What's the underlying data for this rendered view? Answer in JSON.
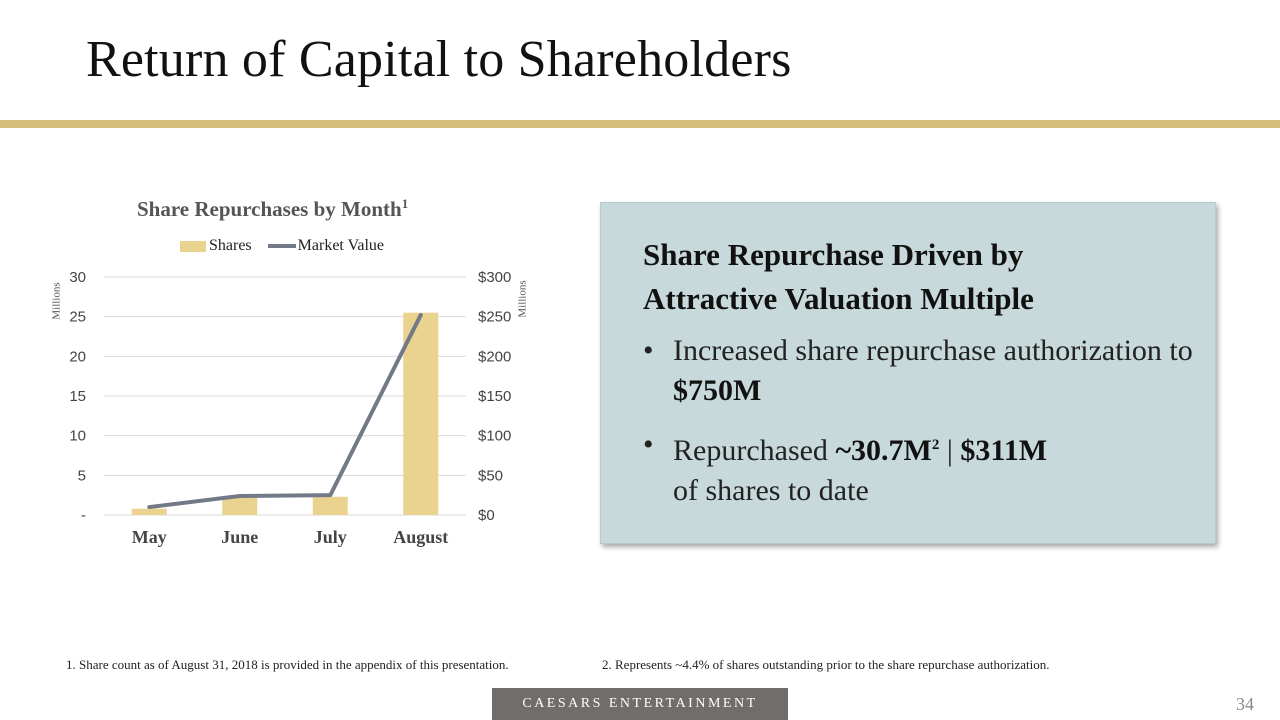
{
  "page": {
    "title": "Return of Capital to Shareholders",
    "page_number": "34",
    "brand": "CAESARS ENTERTAINMENT"
  },
  "chart_data": {
    "type": "bar",
    "title": "Share Repurchases by Month",
    "title_footnote": "1",
    "categories": [
      "May",
      "June",
      "July",
      "August"
    ],
    "series": [
      {
        "name": "Shares",
        "type": "bar",
        "axis": "left",
        "color": "#ead38f",
        "values": [
          0.8,
          2.2,
          2.3,
          25.5
        ]
      },
      {
        "name": "Market Value",
        "type": "line",
        "axis": "right",
        "color": "#737a87",
        "values": [
          10,
          24,
          25,
          252
        ]
      }
    ],
    "left_axis": {
      "unit_label": "Millions",
      "ylim": [
        0,
        30
      ],
      "ticks": [
        0,
        5,
        10,
        15,
        20,
        25,
        30
      ],
      "tick_labels": [
        "-",
        "5",
        "10",
        "15",
        "20",
        "25",
        "30"
      ]
    },
    "right_axis": {
      "unit_label": "Millions",
      "ylim": [
        0,
        300
      ],
      "ticks": [
        0,
        50,
        100,
        150,
        200,
        250,
        300
      ],
      "tick_labels": [
        "$0",
        "$50",
        "$100",
        "$150",
        "$200",
        "$250",
        "$300"
      ]
    },
    "legend": [
      "Shares",
      "Market Value"
    ],
    "legend_position": "top",
    "grid": true
  },
  "panel": {
    "heading": "Share Repurchase Driven by Attractive Valuation Multiple",
    "bullet_symbol": "•",
    "bullet1_text": "Increased share repurchase authorization to ",
    "bullet1_bold": "$750M",
    "bullet2_text": "Repurchased ",
    "bullet2_bold1": "~30.7M",
    "bullet2_sup": "2",
    "bullet2_sep": " | ",
    "bullet2_bold2": "$311M",
    "bullet2_tail": "of shares to date"
  },
  "footnotes": [
    "1.  Share count as of August 31, 2018 is provided in the appendix of this presentation.",
    "2.  Represents ~4.4% of shares outstanding prior to the share repurchase authorization."
  ]
}
